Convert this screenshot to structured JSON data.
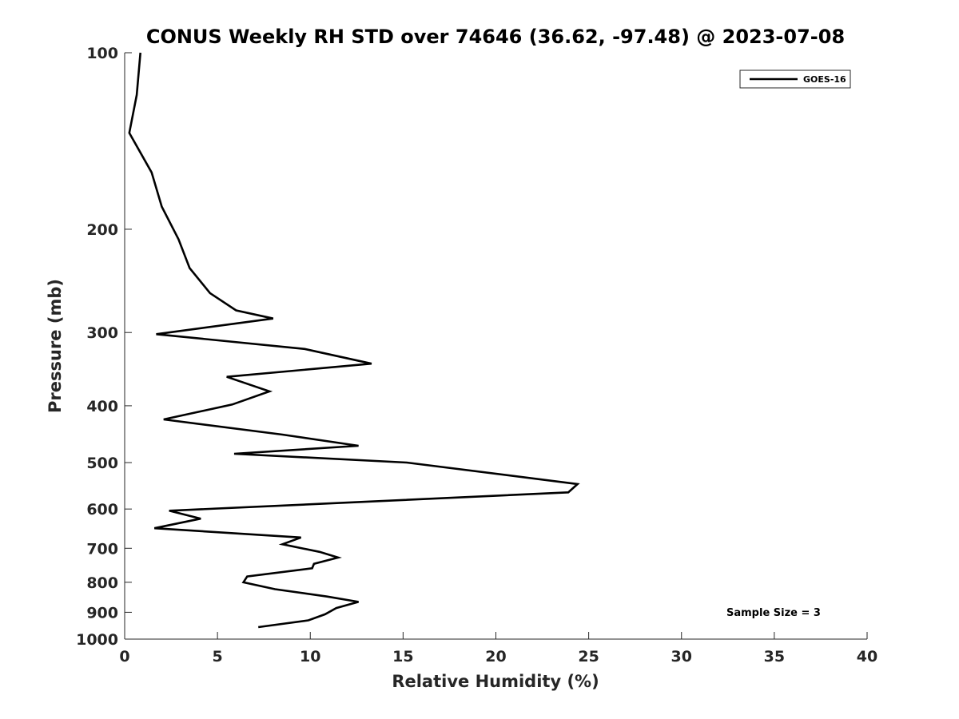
{
  "chart_data": {
    "type": "line",
    "title": "CONUS Weekly RH STD over 74646 (36.62, -97.48) @ 2023-07-08",
    "xlabel": "Relative Humidity (%)",
    "ylabel": "Pressure (mb)",
    "xlim": [
      0,
      40
    ],
    "ylim": [
      100,
      1000
    ],
    "y_scale": "log",
    "y_reversed": true,
    "grid": false,
    "legend_position": "top-right",
    "x_ticks": [
      "0",
      "5",
      "10",
      "15",
      "20",
      "25",
      "30",
      "35",
      "40"
    ],
    "y_ticks": [
      "100",
      "200",
      "300",
      "400",
      "500",
      "600",
      "700",
      "800",
      "900",
      "1000"
    ],
    "annotation": "Sample Size = 3",
    "series": [
      {
        "name": "GOES-16",
        "color": "#000000",
        "points": [
          [
            0.85,
            100
          ],
          [
            0.65,
            118
          ],
          [
            0.25,
            137
          ],
          [
            1.45,
            160
          ],
          [
            2.0,
            183
          ],
          [
            2.9,
            208
          ],
          [
            3.5,
            233
          ],
          [
            4.6,
            257
          ],
          [
            6.0,
            275
          ],
          [
            8.0,
            284
          ],
          [
            1.7,
            302
          ],
          [
            9.7,
            320
          ],
          [
            13.3,
            339
          ],
          [
            5.5,
            357
          ],
          [
            7.8,
            378
          ],
          [
            5.8,
            398
          ],
          [
            2.1,
            422
          ],
          [
            8.5,
            448
          ],
          [
            12.6,
            468
          ],
          [
            5.9,
            483
          ],
          [
            15.2,
            500
          ],
          [
            24.4,
            544
          ],
          [
            23.9,
            562
          ],
          [
            10.5,
            588
          ],
          [
            2.4,
            604
          ],
          [
            4.1,
            623
          ],
          [
            1.6,
            647
          ],
          [
            9.5,
            671
          ],
          [
            8.5,
            689
          ],
          [
            10.5,
            710
          ],
          [
            11.5,
            726
          ],
          [
            10.2,
            744
          ],
          [
            10.1,
            757
          ],
          [
            6.6,
            782
          ],
          [
            6.4,
            800
          ],
          [
            8.1,
            822
          ],
          [
            10.9,
            846
          ],
          [
            12.6,
            864
          ],
          [
            11.4,
            885
          ],
          [
            10.8,
            907
          ],
          [
            9.9,
            929
          ],
          [
            7.2,
            954
          ]
        ]
      }
    ]
  }
}
